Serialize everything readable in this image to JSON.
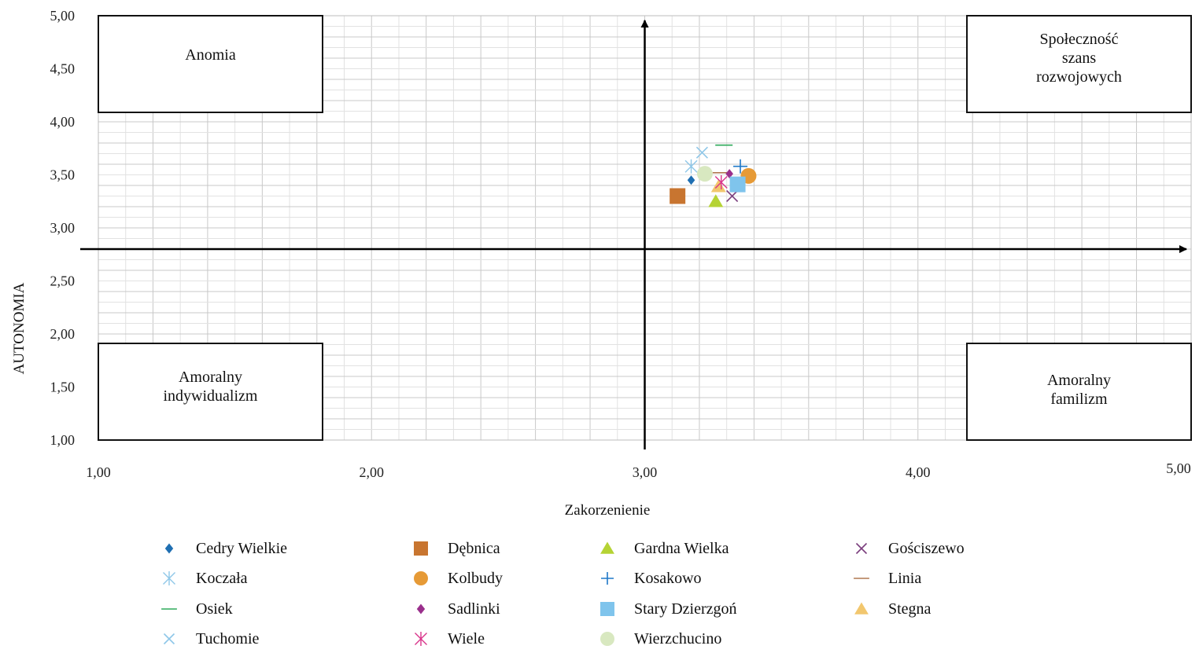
{
  "chart_data": {
    "type": "scatter",
    "xlabel": "Zakorzenienie",
    "ylabel": "AUTONOMIA",
    "xlim": [
      1,
      5
    ],
    "ylim": [
      1,
      5
    ],
    "x_ticks": [
      "1,00",
      "2,00",
      "3,00",
      "4,00",
      "5,00"
    ],
    "y_ticks": [
      "1,00",
      "1,50",
      "2,00",
      "2,50",
      "3,00",
      "3,50",
      "4,00",
      "4,50",
      "5,00"
    ],
    "grid": true,
    "reference_axes": {
      "x": 3.0,
      "y": 2.8
    },
    "quadrants": [
      {
        "position": "top-left",
        "lines": [
          "Anomia"
        ]
      },
      {
        "position": "top-right",
        "lines": [
          "Społeczność",
          "szans",
          "rozwojowych"
        ]
      },
      {
        "position": "bottom-left",
        "lines": [
          "Amoralny",
          "indywidualizm"
        ]
      },
      {
        "position": "bottom-right",
        "lines": [
          "Amoralny",
          "familizm"
        ]
      }
    ],
    "legend_position": "bottom",
    "series": [
      {
        "name": "Cedry Wielkie",
        "marker": "diamond",
        "color": "#1f6fb2",
        "x": 3.17,
        "y": 3.45
      },
      {
        "name": "Dębnica",
        "marker": "square",
        "color": "#c87530",
        "x": 3.12,
        "y": 3.3
      },
      {
        "name": "Gardna Wielka",
        "marker": "triangle",
        "color": "#b5d334",
        "x": 3.26,
        "y": 3.25
      },
      {
        "name": "Gościszewo",
        "marker": "x",
        "color": "#7b3f7e",
        "x": 3.32,
        "y": 3.3
      },
      {
        "name": "Koczała",
        "marker": "asterisk",
        "color": "#8fc7e8",
        "x": 3.17,
        "y": 3.58
      },
      {
        "name": "Kolbudy",
        "marker": "circle",
        "color": "#e69a36",
        "x": 3.38,
        "y": 3.49
      },
      {
        "name": "Kosakowo",
        "marker": "plus",
        "color": "#1f78c8",
        "x": 3.35,
        "y": 3.58
      },
      {
        "name": "Linia",
        "marker": "dash",
        "color": "#b07850",
        "x": 3.28,
        "y": 3.52
      },
      {
        "name": "Osiek",
        "marker": "dash",
        "color": "#2eaa5a",
        "x": 3.29,
        "y": 3.78
      },
      {
        "name": "Sadlinki",
        "marker": "diamond",
        "color": "#9a2f8c",
        "x": 3.31,
        "y": 3.51
      },
      {
        "name": "Stary Dzierzgoń",
        "marker": "square",
        "color": "#7fc4ec",
        "x": 3.34,
        "y": 3.41
      },
      {
        "name": "Stegna",
        "marker": "triangle",
        "color": "#f2c76e",
        "x": 3.27,
        "y": 3.39
      },
      {
        "name": "Tuchomie",
        "marker": "x",
        "color": "#8fc7e8",
        "x": 3.21,
        "y": 3.71
      },
      {
        "name": "Wiele",
        "marker": "asterisk",
        "color": "#d9348a",
        "x": 3.28,
        "y": 3.43
      },
      {
        "name": "Wierzchucino",
        "marker": "circle",
        "color": "#d8e8c0",
        "x": 3.22,
        "y": 3.51
      }
    ]
  }
}
